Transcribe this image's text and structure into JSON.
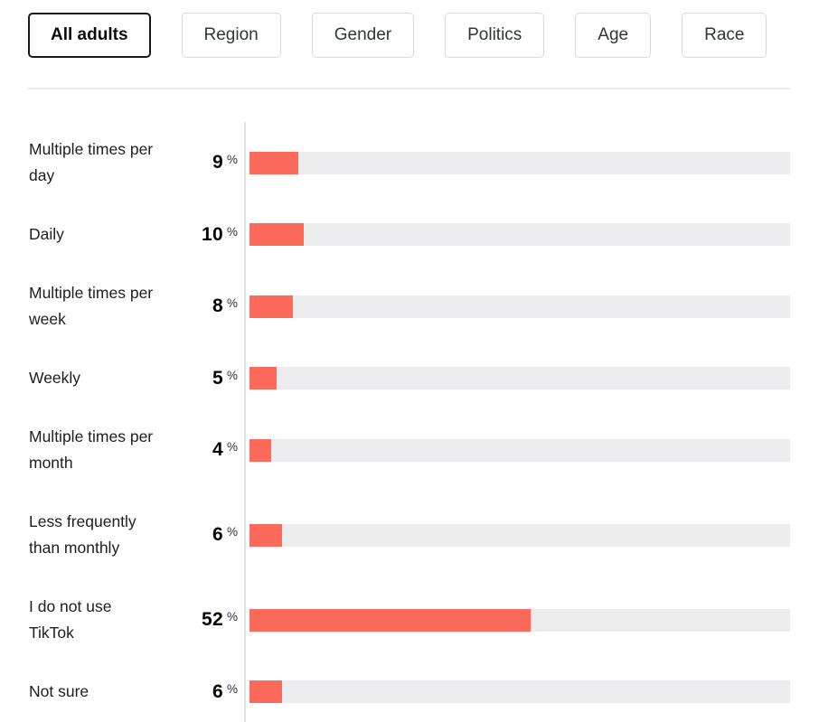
{
  "tabs": {
    "items": [
      {
        "label": "All adults",
        "selected": true
      },
      {
        "label": "Region",
        "selected": false
      },
      {
        "label": "Gender",
        "selected": false
      },
      {
        "label": "Politics",
        "selected": false
      },
      {
        "label": "Age",
        "selected": false
      },
      {
        "label": "Race",
        "selected": false
      }
    ]
  },
  "chart_data": {
    "type": "bar",
    "orientation": "horizontal",
    "title": "",
    "unit": "%",
    "xlim": [
      0,
      100
    ],
    "categories": [
      "Multiple times per\nday",
      "Daily",
      "Multiple times per\nweek",
      "Weekly",
      "Multiple times per\nmonth",
      "Less frequently\nthan monthly",
      "I do not use\nTikTok",
      "Not sure"
    ],
    "values": [
      9,
      10,
      8,
      5,
      4,
      6,
      52,
      6
    ],
    "bar_color": "#fc6a5b",
    "track_color": "#ececef",
    "axis_color": "#e2e2e5",
    "grid": false,
    "legend": false
  }
}
